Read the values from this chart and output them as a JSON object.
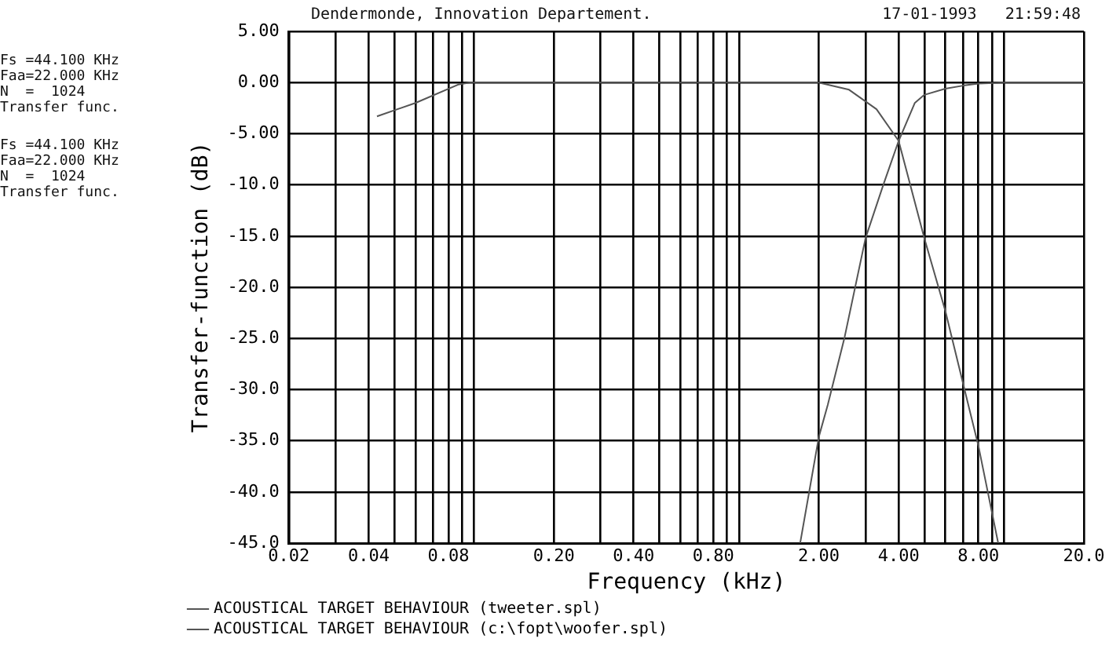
{
  "chart_data": {
    "type": "line",
    "xlabel": "Frequency (kHz)",
    "ylabel": "Transfer-function (dB)",
    "log": "x",
    "xlim": [
      0.02,
      20
    ],
    "ylim": [
      -45,
      5
    ],
    "xticks": [
      0.02,
      {
        "value": 0.03,
        "label": null
      },
      0.04,
      {
        "value": 0.05,
        "label": null
      },
      {
        "value": 0.06,
        "label": null
      },
      {
        "value": 0.07,
        "label": null
      },
      0.08,
      {
        "value": 0.09,
        "label": null
      },
      {
        "value": 0.1,
        "label": null
      },
      {
        "value": 0.2,
        "label": "0.20"
      },
      {
        "value": 0.3,
        "label": null
      },
      {
        "value": 0.4,
        "label": "0.40"
      },
      {
        "value": 0.5,
        "label": null
      },
      {
        "value": 0.6,
        "label": null
      },
      {
        "value": 0.7,
        "label": null
      },
      {
        "value": 0.8,
        "label": "0.80"
      },
      {
        "value": 0.9,
        "label": null
      },
      {
        "value": 1,
        "label": null
      },
      {
        "value": 2,
        "label": "2.00"
      },
      {
        "value": 3,
        "label": null
      },
      {
        "value": 4,
        "label": "4.00"
      },
      {
        "value": 5,
        "label": null
      },
      {
        "value": 6,
        "label": null
      },
      {
        "value": 7,
        "label": null
      },
      {
        "value": 8,
        "label": "8.00"
      },
      {
        "value": 9,
        "label": null
      },
      {
        "value": 10,
        "label": null
      },
      {
        "value": 20,
        "label": "20.0"
      }
    ],
    "yticks": [
      {
        "value": 5,
        "label": "5.00"
      },
      {
        "value": 0,
        "label": "0.00"
      },
      {
        "value": -5,
        "label": "-5.00"
      },
      {
        "value": -10,
        "label": "-10.0"
      },
      {
        "value": -15,
        "label": "-15.0"
      },
      {
        "value": -20,
        "label": "-20.0"
      },
      {
        "value": -25,
        "label": "-25.0"
      },
      {
        "value": -30,
        "label": "-30.0"
      },
      {
        "value": -35,
        "label": "-35.0"
      },
      {
        "value": -40,
        "label": "-40.0"
      },
      {
        "value": -45,
        "label": "-45.0"
      }
    ],
    "grid": true,
    "legend": "bottom left",
    "marker": "none",
    "line_style": "solid",
    "series": [
      {
        "name": "ACOUSTICAL TARGET BEHAVIOUR (tweeter.spl)",
        "color": "#555555",
        "x": [
          1.7,
          2.0,
          2.16,
          2.5,
          3.0,
          3.5,
          4.0,
          4.6,
          5.0,
          6.0,
          7.0,
          8.0,
          10,
          20
        ],
        "values": [
          -45,
          -34.6,
          -31.5,
          -24.9,
          -15.2,
          -10,
          -5.7,
          -2,
          -1.2,
          -0.6,
          -0.3,
          -0.1,
          0,
          0
        ]
      },
      {
        "name": "ACOUSTICAL TARGET BEHAVIOUR (c:\\fopt\\woofer.spl)",
        "color": "#555555",
        "x": [
          0.043,
          0.06,
          0.087,
          0.096,
          1.0,
          2.0,
          2.6,
          3.3,
          4.0,
          5.0,
          6.0,
          7.0,
          8.0,
          9.5
        ],
        "values": [
          -3.3,
          -2,
          -0.2,
          0,
          0,
          0,
          -0.7,
          -2.6,
          -5.7,
          -15.2,
          -22.3,
          -29.4,
          -35.5,
          -45
        ]
      }
    ],
    "annotations": [
      "Fs =44.100 KHz\nFaa=22.000 KHz\nN  =  1024\nTransfer func.",
      "Fs =44.100 KHz\nFaa=22.000 KHz\nN  =  1024\nTransfer func.",
      "Dendermonde, Innovation Departement.",
      "17-01-1993   21:59:48"
    ]
  }
}
